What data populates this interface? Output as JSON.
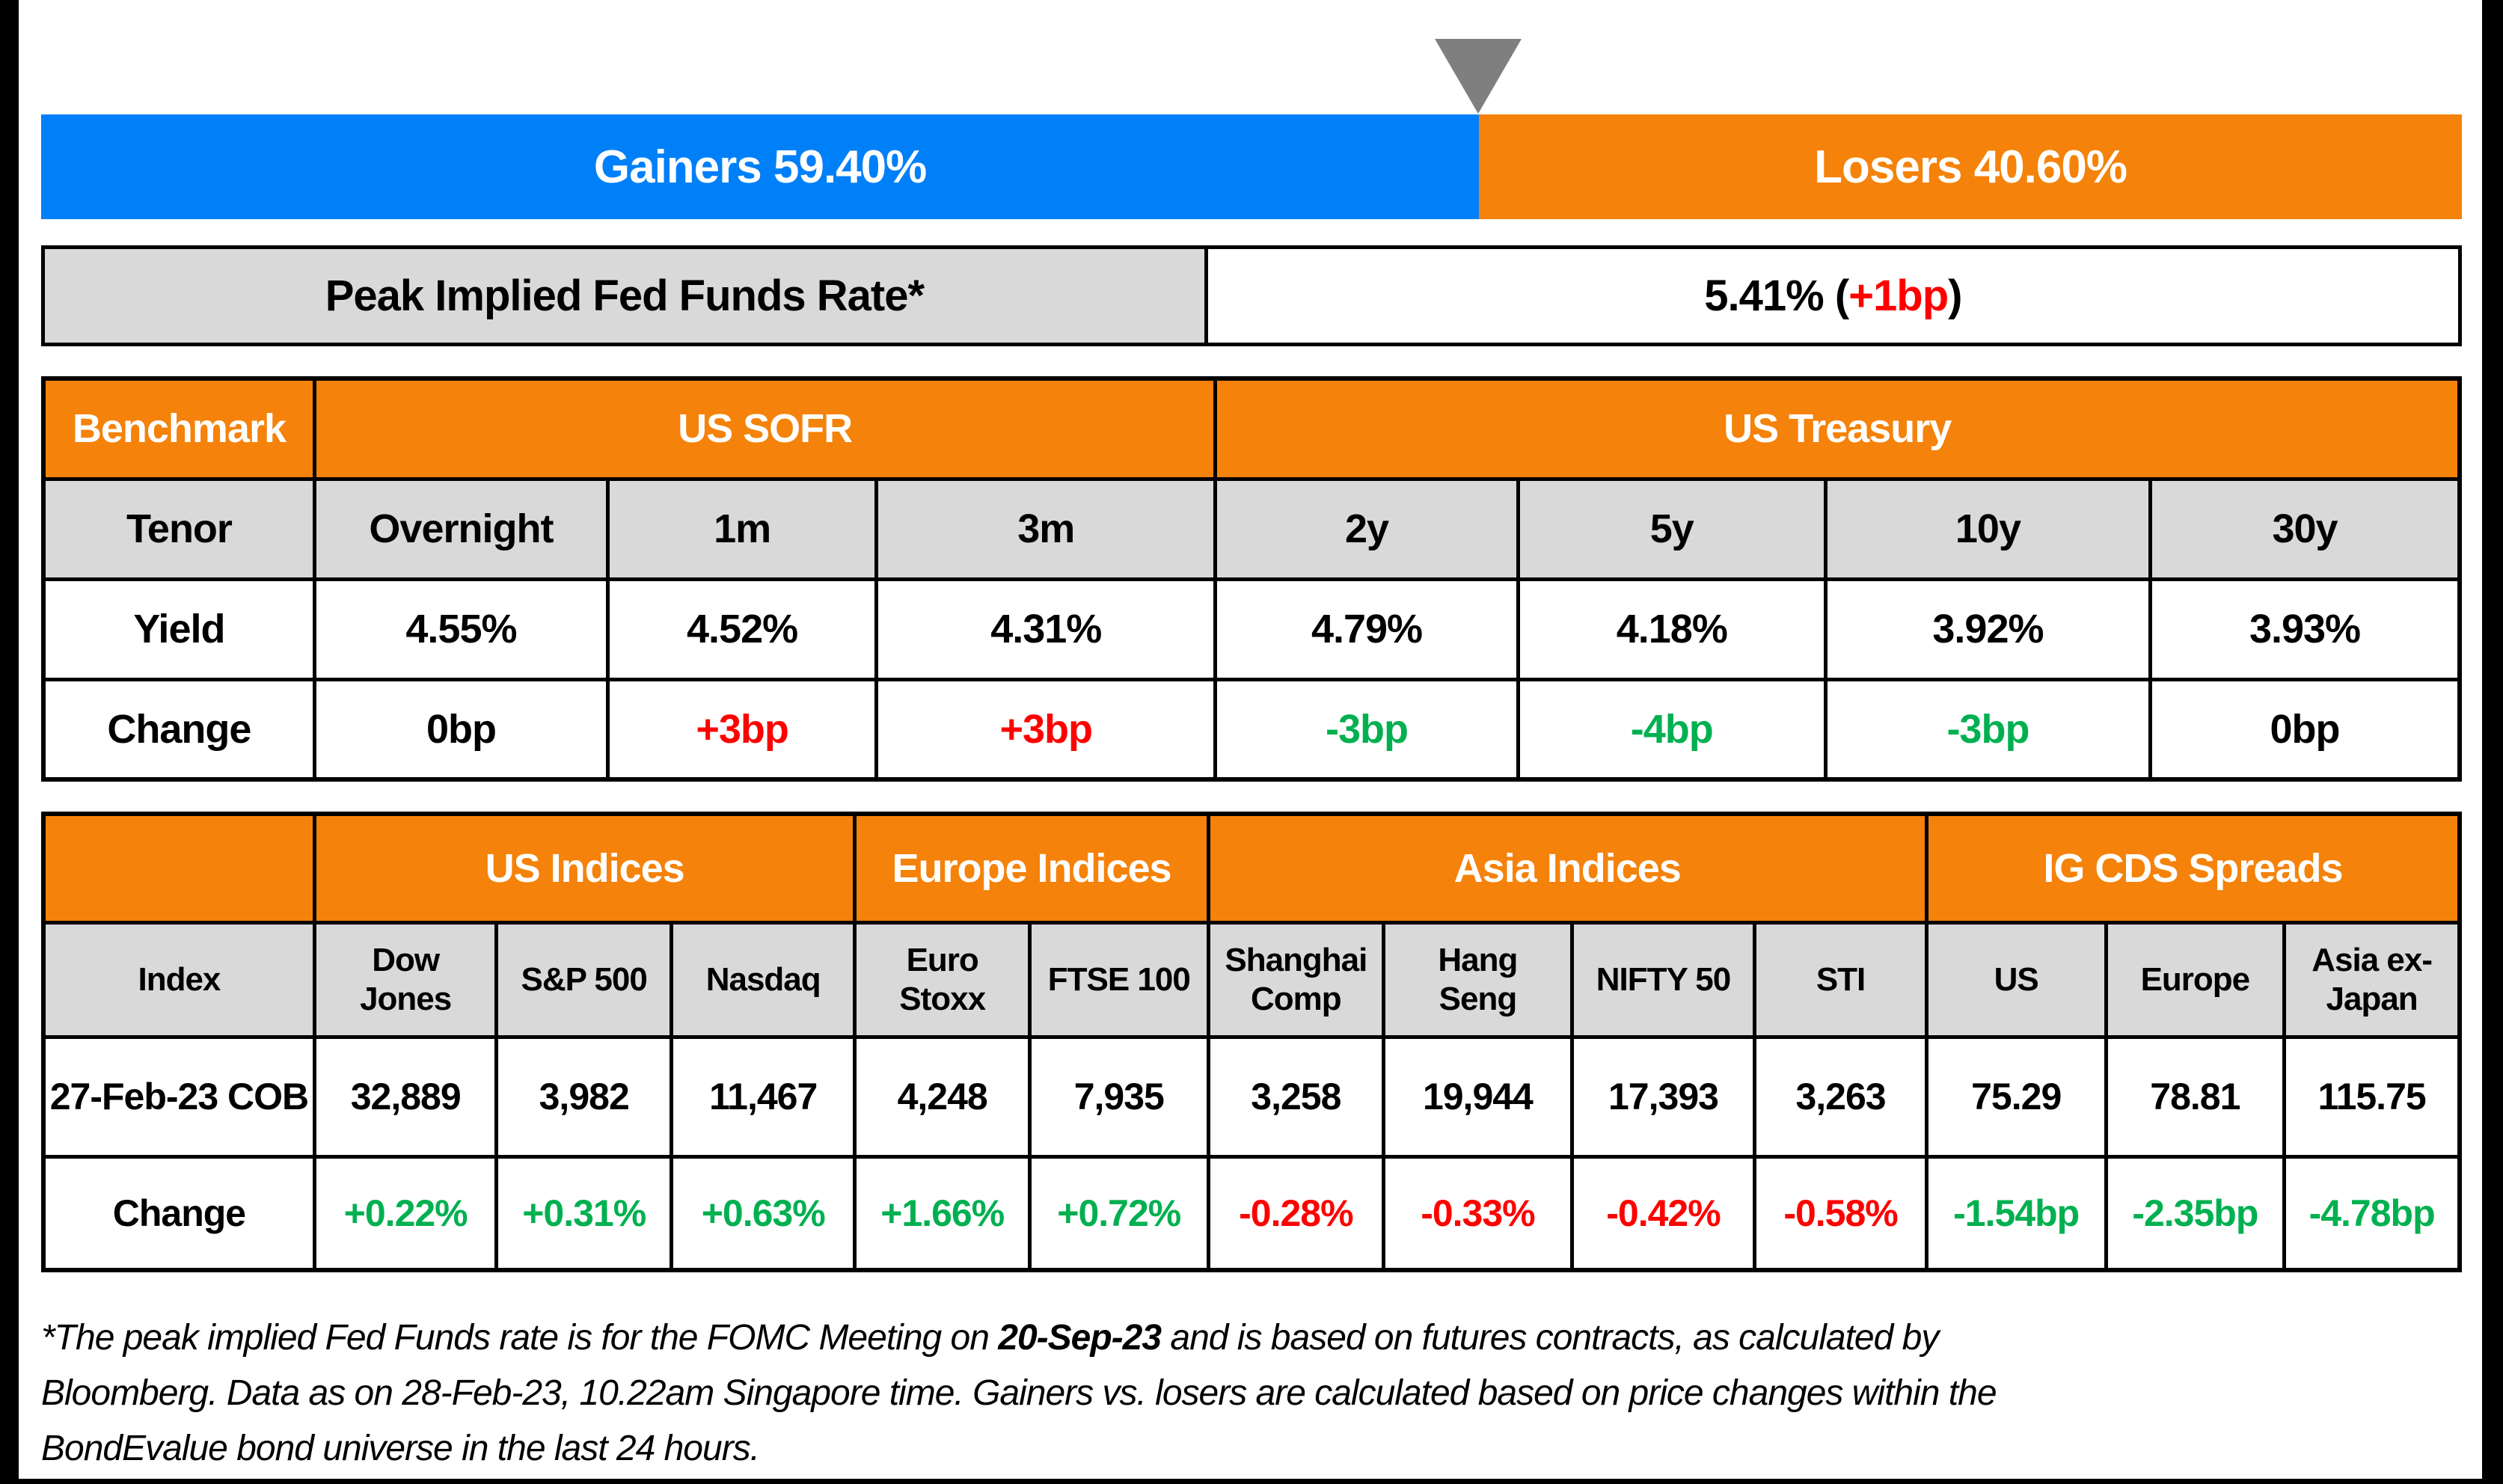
{
  "colors": {
    "blue": "#0080F8",
    "orange": "#F5820A",
    "green": "#00B050",
    "red": "#FF0000",
    "header_gray": "#D9D9D9",
    "triangle_gray": "#7F7F7F"
  },
  "gainers_losers": {
    "gainers_label": "Gainers 59.40%",
    "losers_label": "Losers 40.60%",
    "gainers_pct": 59.4,
    "losers_pct": 40.6
  },
  "peak_rate": {
    "label": "Peak Implied Fed Funds Rate*",
    "value_prefix": "5.41% (",
    "change": "+1bp",
    "value_suffix": ")"
  },
  "benchmark_table": {
    "corner_label": "Benchmark",
    "row_labels": {
      "tenor": "Tenor",
      "yield": "Yield",
      "change": "Change"
    },
    "groups": [
      {
        "label": "US SOFR",
        "span": 3
      },
      {
        "label": "US Treasury",
        "span": 4
      }
    ],
    "col_widths_pct": [
      11.22,
      12.14,
      11.12,
      14.03,
      12.52,
      12.73,
      13.44,
      12.8
    ],
    "columns": [
      {
        "tenor": "Overnight",
        "yield": "4.55%",
        "change": "0bp",
        "change_color": "black"
      },
      {
        "tenor": "1m",
        "yield": "4.52%",
        "change": "+3bp",
        "change_color": "red"
      },
      {
        "tenor": "3m",
        "yield": "4.31%",
        "change": "+3bp",
        "change_color": "red"
      },
      {
        "tenor": "2y",
        "yield": "4.79%",
        "change": "-3bp",
        "change_color": "green"
      },
      {
        "tenor": "5y",
        "yield": "4.18%",
        "change": "-4bp",
        "change_color": "green"
      },
      {
        "tenor": "10y",
        "yield": "3.92%",
        "change": "-3bp",
        "change_color": "green"
      },
      {
        "tenor": "30y",
        "yield": "3.93%",
        "change": "0bp",
        "change_color": "black"
      }
    ]
  },
  "indices_table": {
    "corner_label": "",
    "index_label": "Index",
    "row1_label": "27-Feb-23 COB",
    "row2_label": "Change",
    "groups": [
      {
        "label": "US Indices",
        "span": 3
      },
      {
        "label": "Europe Indices",
        "span": 2
      },
      {
        "label": "Asia Indices",
        "span": 4
      },
      {
        "label": "IG CDS Spreads",
        "span": 3
      }
    ],
    "col_widths_pct": [
      11.22,
      7.54,
      7.23,
      7.6,
      7.23,
      7.39,
      7.26,
      7.79,
      7.57,
      7.11,
      7.42,
      7.39,
      7.25
    ],
    "columns": [
      {
        "name": "Dow Jones",
        "value": "32,889",
        "change": "+0.22%",
        "change_color": "green"
      },
      {
        "name": "S&P 500",
        "value": "3,982",
        "change": "+0.31%",
        "change_color": "green"
      },
      {
        "name": "Nasdaq",
        "value": "11,467",
        "change": "+0.63%",
        "change_color": "green"
      },
      {
        "name": "Euro Stoxx",
        "value": "4,248",
        "change": "+1.66%",
        "change_color": "green"
      },
      {
        "name": "FTSE 100",
        "value": "7,935",
        "change": "+0.72%",
        "change_color": "green"
      },
      {
        "name": "Shanghai Comp",
        "value": "3,258",
        "change": "-0.28%",
        "change_color": "red"
      },
      {
        "name": "Hang Seng",
        "value": "19,944",
        "change": "-0.33%",
        "change_color": "red"
      },
      {
        "name": "NIFTY 50",
        "value": "17,393",
        "change": "-0.42%",
        "change_color": "red"
      },
      {
        "name": "STI",
        "value": "3,263",
        "change": "-0.58%",
        "change_color": "red"
      },
      {
        "name": "US",
        "value": "75.29",
        "change": "-1.54bp",
        "change_color": "green"
      },
      {
        "name": "Europe",
        "value": "78.81",
        "change": "-2.35bp",
        "change_color": "green"
      },
      {
        "name": "Asia ex-Japan",
        "value": "115.75",
        "change": "-4.78bp",
        "change_color": "green"
      }
    ]
  },
  "footnote": {
    "lines": [
      {
        "parts": [
          {
            "t": "*The peak implied Fed Funds rate is for the FOMC Meeting on "
          },
          {
            "t": "20-Sep-23",
            "b": true
          },
          {
            "t": " and is based on futures contracts, as calculated by"
          }
        ]
      },
      {
        "parts": [
          {
            "t": "Bloomberg. Data as on 28-Feb-23, 10.22am Singapore time. Gainers vs. losers are calculated based on price changes within the"
          }
        ]
      },
      {
        "parts": [
          {
            "t": "BondEvalue bond universe in the last 24 hours."
          }
        ]
      }
    ]
  },
  "chart_data": [
    {
      "type": "bar",
      "title": "Gainers vs Losers (stacked percentage bar)",
      "categories": [
        "Gainers",
        "Losers"
      ],
      "values": [
        59.4,
        40.6
      ],
      "xlabel": "",
      "ylabel": "",
      "ylim": [
        0,
        100
      ],
      "legend_position": "none",
      "annotations": [
        "Gray triangle marker at the 59.40% boundary",
        "Peak Implied Fed Funds Rate*: 5.41% (+1bp)"
      ]
    },
    {
      "type": "table",
      "title": "Benchmark yields",
      "group_headers": [
        "Benchmark",
        "US SOFR (Overnight, 1m, 3m)",
        "US Treasury (2y, 5y, 10y, 30y)"
      ],
      "categories": [
        "Overnight",
        "1m",
        "3m",
        "2y",
        "5y",
        "10y",
        "30y"
      ],
      "series": [
        {
          "name": "Yield",
          "values": [
            "4.55%",
            "4.52%",
            "4.31%",
            "4.79%",
            "4.18%",
            "3.92%",
            "3.93%"
          ]
        },
        {
          "name": "Change",
          "values": [
            "0bp",
            "+3bp",
            "+3bp",
            "-3bp",
            "-4bp",
            "-3bp",
            "0bp"
          ]
        }
      ]
    },
    {
      "type": "table",
      "title": "Indices and IG CDS Spreads",
      "group_headers": [
        "US Indices",
        "Europe Indices",
        "Asia Indices",
        "IG CDS Spreads"
      ],
      "categories": [
        "Dow Jones",
        "S&P 500",
        "Nasdaq",
        "Euro Stoxx",
        "FTSE 100",
        "Shanghai Comp",
        "Hang Seng",
        "NIFTY 50",
        "STI",
        "US",
        "Europe",
        "Asia ex-Japan"
      ],
      "series": [
        {
          "name": "27-Feb-23 COB",
          "values": [
            32889,
            3982,
            11467,
            4248,
            7935,
            3258,
            19944,
            17393,
            3263,
            75.29,
            78.81,
            115.75
          ]
        },
        {
          "name": "Change",
          "values": [
            "+0.22%",
            "+0.31%",
            "+0.63%",
            "+1.66%",
            "+0.72%",
            "-0.28%",
            "-0.33%",
            "-0.42%",
            "-0.58%",
            "-1.54bp",
            "-2.35bp",
            "-4.78bp"
          ]
        }
      ]
    }
  ]
}
